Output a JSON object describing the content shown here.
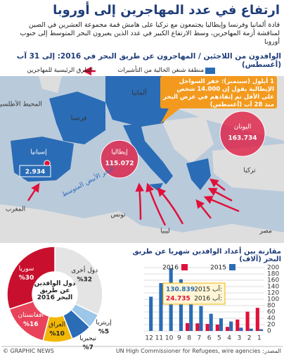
{
  "header": {
    "title": "ارتفاع في عدد المهاجرين إلى أوروبا",
    "subtitle": "قادة ألمانيا وفرنسا وإيطاليا يجتمعون مع تركيا على هامش قمة مجموعة العشرين في الصين لمناقشة أزمة المهاجرين، وسط الارتفاع الكبير في عدد الذين يعبرون البحر المتوسط إلى جنوب أوروبا"
  },
  "chart_data": [
    {
      "type": "map",
      "title": "الوافدون من اللاجئين / المهاجرون عن طريق البحر في 2016: إلى 31 آب (أغسطس)",
      "legend": {
        "routes": "الطرق الرئيسية للمهاجرين",
        "schengen": "منطقة شنغن الخالية من التأشيرات"
      },
      "route_color": "#e0103a",
      "schengen_color": "#2a6cb6",
      "regions": [
        {
          "name": "إسبانيا",
          "value": 2934,
          "value_label": "2.934"
        },
        {
          "name": "إيطاليا",
          "value": 115072,
          "value_label": "115.072"
        },
        {
          "name": "اليونان",
          "value": 163734,
          "value_label": "163.734"
        }
      ],
      "places": [
        "المحيط الأطلسي",
        "فرنسا",
        "ألمانيا",
        "تركيا",
        "المغرب",
        "تونس",
        "ليبيا",
        "مصر",
        "البحر الأبيض المتوسط"
      ],
      "annotation": "1 أيلول (سبتمبر): خفر السواحل الإيطالية يقول إن 14.000 شخص على الأقل تم إنقاذهم في عرض البحر منذ 28 آب (أغسطس)"
    },
    {
      "type": "donut",
      "title": "دول الوافدين عن طريق البحر 2016",
      "categories": [
        "دول أخرى",
        "إريتريا",
        "نيجيريا",
        "العراق",
        "أفغانستان",
        "سوريا"
      ],
      "values": [
        32,
        5,
        7,
        10,
        16,
        30
      ],
      "value_labels": [
        "%32",
        "%5",
        "%7",
        "%10",
        "%16",
        "%30"
      ],
      "colors": [
        "#e4e4e4",
        "#9cc7e8",
        "#2a6cb6",
        "#f2b705",
        "#e8435a",
        "#c8102e"
      ]
    },
    {
      "type": "bar",
      "title": "مقارنة بين أعداد الوافدين شهريا عن طريق البحر (آلاف)",
      "categories": [
        "1",
        "2",
        "3",
        "4",
        "5",
        "6",
        "7",
        "8",
        "9",
        "10",
        "11",
        "12"
      ],
      "series": [
        {
          "name": "2016",
          "color": "#e0103a",
          "values": [
            73,
            61,
            36,
            13,
            20,
            22,
            24,
            24.735,
            null,
            null,
            null,
            null
          ],
          "value_labels": [
            null,
            null,
            null,
            null,
            null,
            null,
            null,
            "24.735",
            null,
            null,
            null,
            null
          ]
        },
        {
          "name": "2015",
          "color": "#2a6cb6",
          "values": [
            5.5,
            7.3,
            10.4,
            29.9,
            39.6,
            54.2,
            78.4,
            130.839,
            163,
            198,
            151,
            108
          ],
          "value_labels": [
            null,
            null,
            null,
            null,
            null,
            null,
            null,
            "130.839",
            null,
            null,
            null,
            null
          ]
        }
      ],
      "annotations": [
        "آب 2015:",
        "آب 2016:"
      ],
      "ylim": [
        0,
        200
      ],
      "yticks": [
        0,
        20,
        40,
        60,
        80,
        100,
        120,
        140,
        160,
        180,
        200
      ],
      "grid": true
    }
  ],
  "source": "المصدر: UN High Commissioner for Refugees, wire agencies",
  "credit": "© GRAPHIC NEWS"
}
